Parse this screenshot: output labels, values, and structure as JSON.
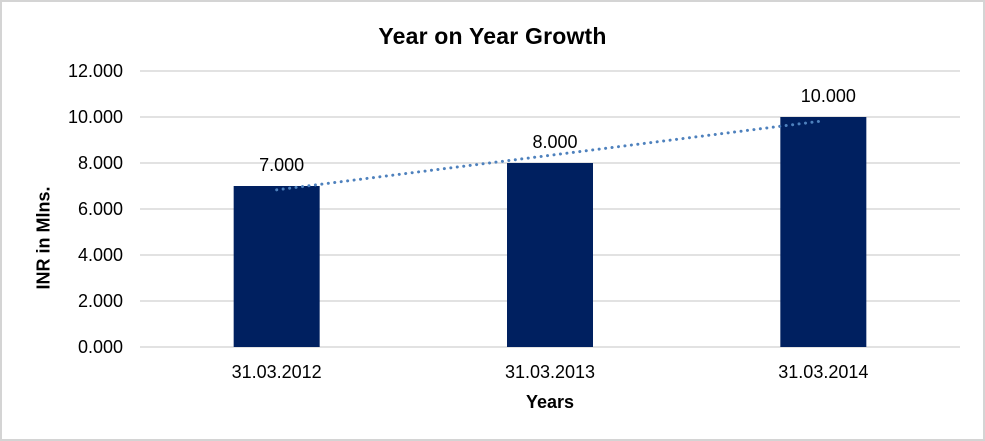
{
  "frame": {
    "background": "#ffffff",
    "border_color": "#d4d4d4"
  },
  "chart_data": {
    "type": "bar",
    "title": "Year on Year Growth",
    "xlabel": "Years",
    "ylabel": "INR in Mlns.",
    "categories": [
      "31.03.2012",
      "31.03.2013",
      "31.03.2014"
    ],
    "values": [
      7,
      8,
      10
    ],
    "value_labels": [
      "7.000",
      "8.000",
      "10.000"
    ],
    "ylim": [
      0,
      12
    ],
    "ytick_step": 2,
    "ytick_labels": [
      "0.000",
      "2.000",
      "4.000",
      "6.000",
      "8.000",
      "10.000",
      "12.000"
    ],
    "grid": true,
    "legend": false,
    "bar_color": "#002060",
    "gridline_color": "#d9d9d9",
    "trendline": {
      "type": "linear",
      "style": "dotted",
      "color": "#4e81bd"
    }
  }
}
